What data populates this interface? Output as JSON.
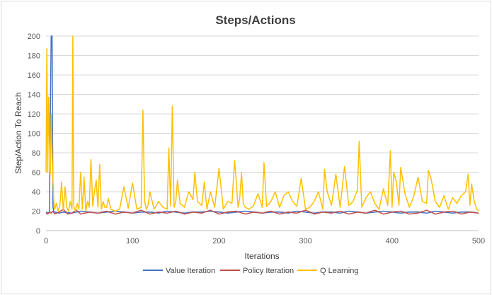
{
  "chart_data": {
    "type": "line",
    "title": "Steps/Actions",
    "xlabel": "Iterations",
    "ylabel": "Step/Action To Reach",
    "xlim": [
      0,
      500
    ],
    "ylim": [
      0,
      200
    ],
    "x_ticks": [
      0,
      100,
      200,
      300,
      400,
      500
    ],
    "y_ticks": [
      0,
      20,
      40,
      60,
      80,
      100,
      120,
      140,
      160,
      180,
      200
    ],
    "grid": "horizontal",
    "legend_position": "bottom",
    "series": [
      {
        "name": "Value Iteration",
        "color": "#4472c4",
        "x": [
          0,
          2,
          4,
          5,
          6,
          7,
          8,
          9,
          10,
          15,
          20,
          30,
          40,
          50,
          60,
          70,
          80,
          90,
          100,
          110,
          120,
          130,
          140,
          150,
          160,
          170,
          180,
          190,
          200,
          210,
          220,
          230,
          240,
          250,
          260,
          270,
          280,
          290,
          300,
          310,
          320,
          330,
          340,
          350,
          360,
          370,
          380,
          390,
          400,
          410,
          420,
          430,
          440,
          450,
          460,
          470,
          480,
          490,
          500
        ],
        "values": [
          19,
          18,
          19,
          120,
          200,
          200,
          25,
          19,
          19,
          18,
          19,
          18,
          20,
          19,
          18,
          19,
          20,
          19,
          18,
          19,
          19,
          18,
          20,
          19,
          18,
          19,
          19,
          20,
          19,
          18,
          19,
          20,
          19,
          18,
          19,
          19,
          18,
          20,
          19,
          18,
          19,
          19,
          18,
          20,
          19,
          18,
          19,
          20,
          19,
          18,
          19,
          19,
          18,
          20,
          19,
          18,
          19,
          19,
          18
        ]
      },
      {
        "name": "Policy Iteration",
        "color": "#c0504d",
        "x": [
          0,
          2,
          4,
          6,
          8,
          10,
          15,
          20,
          25,
          30,
          35,
          40,
          50,
          60,
          70,
          80,
          90,
          100,
          110,
          120,
          130,
          140,
          150,
          160,
          170,
          180,
          190,
          200,
          210,
          220,
          230,
          240,
          250,
          260,
          270,
          280,
          290,
          300,
          310,
          320,
          330,
          340,
          350,
          360,
          370,
          380,
          390,
          400,
          410,
          420,
          430,
          440,
          450,
          460,
          470,
          480,
          490,
          500
        ],
        "values": [
          18,
          17,
          19,
          18,
          20,
          17,
          19,
          22,
          17,
          18,
          21,
          17,
          19,
          18,
          20,
          17,
          19,
          18,
          21,
          17,
          19,
          18,
          20,
          17,
          19,
          18,
          21,
          17,
          19,
          20,
          17,
          19,
          18,
          20,
          17,
          19,
          18,
          21,
          17,
          19,
          18,
          20,
          17,
          19,
          18,
          21,
          17,
          19,
          20,
          17,
          18,
          21,
          17,
          19,
          20,
          17,
          19,
          18
        ]
      },
      {
        "name": "Q Learning",
        "color": "#ffc000",
        "x": [
          0,
          1,
          2,
          3,
          4,
          5,
          6,
          7,
          8,
          9,
          10,
          12,
          14,
          16,
          18,
          20,
          22,
          24,
          26,
          28,
          30,
          31,
          32,
          34,
          36,
          38,
          40,
          42,
          44,
          46,
          48,
          50,
          52,
          54,
          56,
          58,
          60,
          62,
          64,
          66,
          68,
          70,
          72,
          75,
          80,
          85,
          90,
          95,
          100,
          105,
          110,
          112,
          114,
          116,
          118,
          120,
          125,
          130,
          135,
          140,
          142,
          144,
          146,
          148,
          150,
          152,
          155,
          160,
          165,
          170,
          172,
          175,
          180,
          183,
          186,
          190,
          195,
          200,
          205,
          210,
          215,
          218,
          220,
          222,
          224,
          226,
          228,
          230,
          235,
          240,
          245,
          250,
          252,
          255,
          260,
          265,
          270,
          275,
          280,
          285,
          290,
          295,
          300,
          305,
          310,
          315,
          320,
          322,
          325,
          330,
          335,
          340,
          345,
          350,
          355,
          360,
          362,
          365,
          370,
          375,
          380,
          385,
          390,
          395,
          398,
          400,
          402,
          405,
          408,
          410,
          415,
          420,
          425,
          430,
          435,
          440,
          442,
          445,
          450,
          455,
          460,
          465,
          470,
          475,
          480,
          485,
          488,
          490,
          492,
          495,
          498,
          500
        ],
        "values": [
          60,
          187,
          60,
          137,
          90,
          58,
          120,
          80,
          52,
          30,
          22,
          28,
          20,
          26,
          50,
          20,
          45,
          24,
          20,
          30,
          22,
          200,
          25,
          20,
          28,
          22,
          60,
          22,
          55,
          20,
          30,
          24,
          73,
          25,
          40,
          52,
          24,
          68,
          22,
          30,
          24,
          24,
          33,
          22,
          20,
          22,
          45,
          23,
          49,
          22,
          24,
          124,
          30,
          22,
          26,
          40,
          22,
          30,
          24,
          22,
          85,
          25,
          128,
          24,
          30,
          52,
          28,
          24,
          40,
          32,
          60,
          30,
          26,
          50,
          22,
          40,
          24,
          64,
          22,
          30,
          28,
          72,
          50,
          24,
          34,
          60,
          28,
          24,
          22,
          26,
          38,
          24,
          70,
          25,
          30,
          40,
          24,
          36,
          40,
          30,
          25,
          54,
          22,
          24,
          30,
          40,
          22,
          63,
          40,
          26,
          58,
          24,
          66,
          26,
          30,
          42,
          92,
          24,
          34,
          40,
          28,
          22,
          43,
          26,
          82,
          24,
          60,
          50,
          26,
          65,
          38,
          24,
          35,
          55,
          30,
          28,
          62,
          54,
          30,
          24,
          36,
          22,
          34,
          28,
          36,
          40,
          58,
          26,
          48,
          30,
          22,
          20
        ]
      }
    ]
  }
}
